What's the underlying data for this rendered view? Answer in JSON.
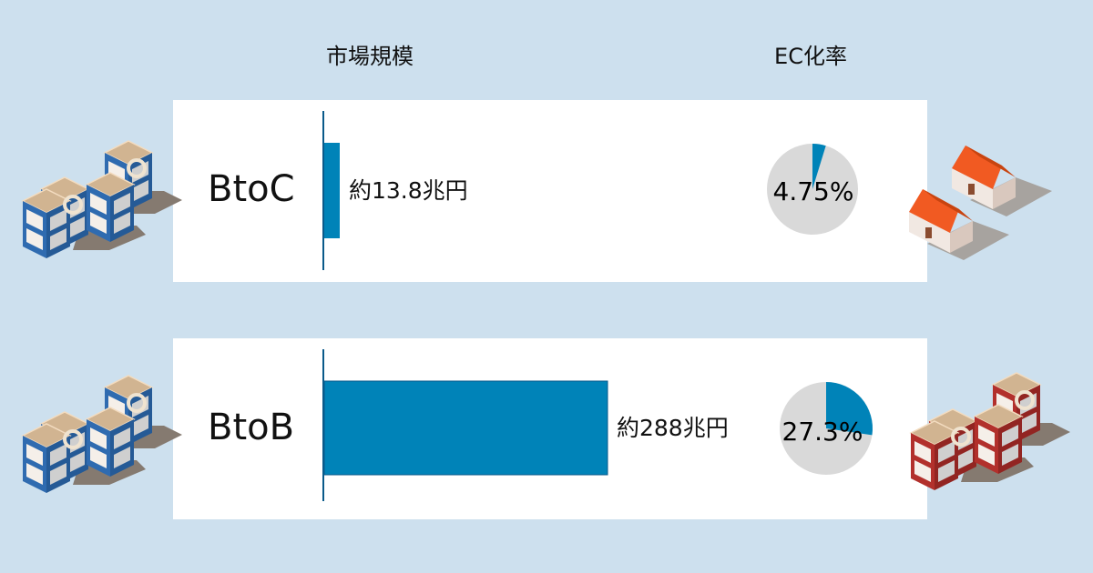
{
  "headers": {
    "market_size": "市場規模",
    "ec_rate": "EC化率"
  },
  "colors": {
    "bar": "#0083b8",
    "pie_rest": "#d9d9d9",
    "background": "#cde0ee"
  },
  "chart_data": {
    "type": "bar",
    "categories": [
      "BtoC",
      "BtoB"
    ],
    "series": [
      {
        "name": "市場規模",
        "values": [
          13.8,
          288
        ],
        "labels": [
          "約13.8兆円",
          "約288兆円"
        ],
        "unit": "兆円"
      },
      {
        "name": "EC化率",
        "type": "pie",
        "values": [
          4.75,
          27.3
        ],
        "labels": [
          "4.75%",
          "27.3%"
        ]
      }
    ]
  }
}
